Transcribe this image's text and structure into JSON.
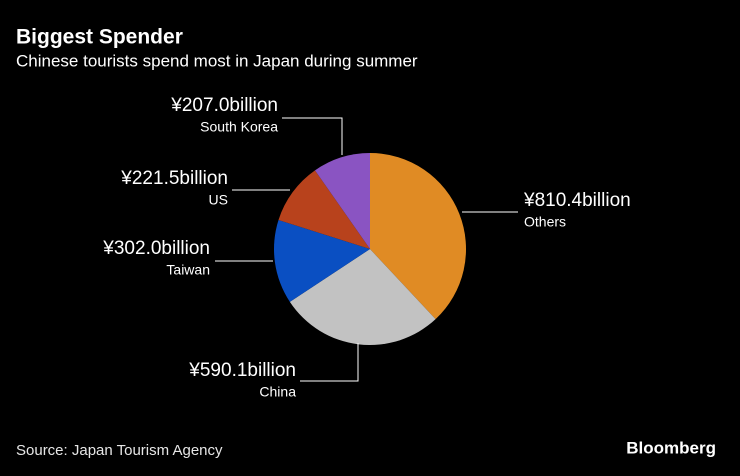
{
  "chart_data": {
    "type": "pie",
    "title": "Biggest Spender",
    "subtitle": "Chinese tourists spend most in Japan during summer",
    "categories": [
      "Others",
      "China",
      "Taiwan",
      "US",
      "South Korea"
    ],
    "values": [
      810.4,
      590.1,
      302.0,
      221.5,
      207.0
    ],
    "value_labels": [
      "¥810.4billion",
      "¥590.1billion",
      "¥302.0billion",
      "¥221.5billion",
      "¥207.0billion"
    ],
    "colors": [
      "#e08b24",
      "#c2c2c2",
      "#0a4fc2",
      "#b8421c",
      "#8a54c2"
    ],
    "source": "Source: Japan Tourism Agency",
    "brand": "Bloomberg"
  }
}
